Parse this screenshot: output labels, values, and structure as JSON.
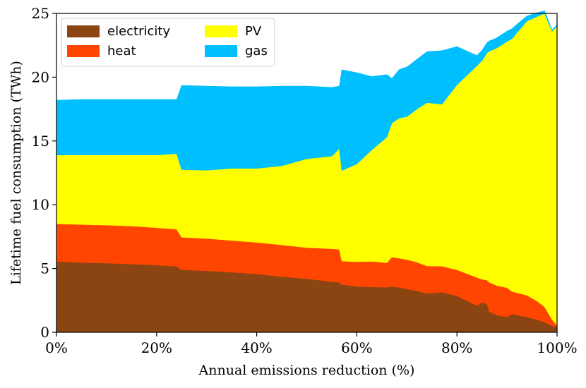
{
  "chart_data": {
    "type": "area",
    "stacked": true,
    "xlabel": "Annual emissions reduction (%)",
    "ylabel": "Lifetime fuel consumption (TWh)",
    "xlim": [
      0,
      100
    ],
    "ylim": [
      0,
      25
    ],
    "xticks": [
      0,
      20,
      40,
      60,
      80,
      100
    ],
    "xtick_labels": [
      "0%",
      "20%",
      "40%",
      "60%",
      "80%",
      "100%"
    ],
    "yticks": [
      0,
      5,
      10,
      15,
      20,
      25
    ],
    "ytick_labels": [
      "0",
      "5",
      "10",
      "15",
      "20",
      "25"
    ],
    "legend_position": "top-left",
    "x": [
      0,
      5,
      10,
      15,
      20,
      24,
      25,
      30,
      35,
      40,
      45,
      50,
      55,
      56.5,
      57,
      60,
      63,
      66,
      67,
      68.5,
      70,
      72,
      74,
      77,
      80,
      84,
      85,
      86,
      86.5,
      87.5,
      88,
      90,
      91,
      92,
      94,
      96,
      97.5,
      99,
      100
    ],
    "series": [
      {
        "name": "electricity",
        "color": "#8B4513",
        "values": [
          5.55,
          5.47,
          5.42,
          5.35,
          5.27,
          5.18,
          4.9,
          4.82,
          4.71,
          4.57,
          4.37,
          4.2,
          3.97,
          3.92,
          3.75,
          3.6,
          3.55,
          3.53,
          3.58,
          3.52,
          3.4,
          3.25,
          3.05,
          3.15,
          2.85,
          2.1,
          2.35,
          2.2,
          1.6,
          1.45,
          1.35,
          1.2,
          1.45,
          1.35,
          1.2,
          1.0,
          0.8,
          0.5,
          0.4
        ]
      },
      {
        "name": "heat",
        "color": "#FF4500",
        "values": [
          2.95,
          2.98,
          2.98,
          2.98,
          2.93,
          2.9,
          2.55,
          2.53,
          2.49,
          2.48,
          2.48,
          2.44,
          2.58,
          2.58,
          1.83,
          1.93,
          2.01,
          1.92,
          2.32,
          2.28,
          2.3,
          2.25,
          2.15,
          2.03,
          2.05,
          2.2,
          1.8,
          1.9,
          2.3,
          2.3,
          2.3,
          2.3,
          1.75,
          1.75,
          1.7,
          1.45,
          1.2,
          0.5,
          0.15
        ]
      },
      {
        "name": "PV",
        "color": "#FFFF00",
        "values": [
          5.4,
          5.45,
          5.5,
          5.57,
          5.7,
          5.92,
          5.3,
          5.35,
          5.65,
          5.8,
          6.2,
          6.96,
          7.25,
          7.9,
          7.1,
          7.67,
          8.74,
          9.85,
          10.5,
          11.0,
          11.2,
          12.0,
          12.8,
          12.7,
          14.5,
          16.6,
          17.15,
          17.8,
          18.15,
          18.45,
          18.65,
          19.3,
          19.8,
          20.4,
          21.5,
          22.3,
          23.0,
          22.6,
          23.45
        ]
      },
      {
        "name": "gas",
        "color": "#00BFFF",
        "values": [
          4.3,
          4.35,
          4.35,
          4.35,
          4.35,
          4.25,
          6.6,
          6.6,
          6.4,
          6.4,
          6.25,
          5.7,
          5.4,
          4.9,
          7.9,
          7.15,
          5.75,
          4.9,
          3.5,
          3.8,
          3.9,
          3.9,
          4.0,
          4.2,
          3.0,
          0.8,
          0.8,
          0.8,
          0.8,
          0.8,
          0.8,
          0.8,
          0.8,
          0.65,
          0.4,
          0.3,
          0.2,
          0.1,
          0.1
        ]
      }
    ],
    "legend": [
      {
        "name": "electricity",
        "color": "#8B4513"
      },
      {
        "name": "heat",
        "color": "#FF4500"
      },
      {
        "name": "PV",
        "color": "#FFFF00"
      },
      {
        "name": "gas",
        "color": "#00BFFF"
      }
    ]
  }
}
